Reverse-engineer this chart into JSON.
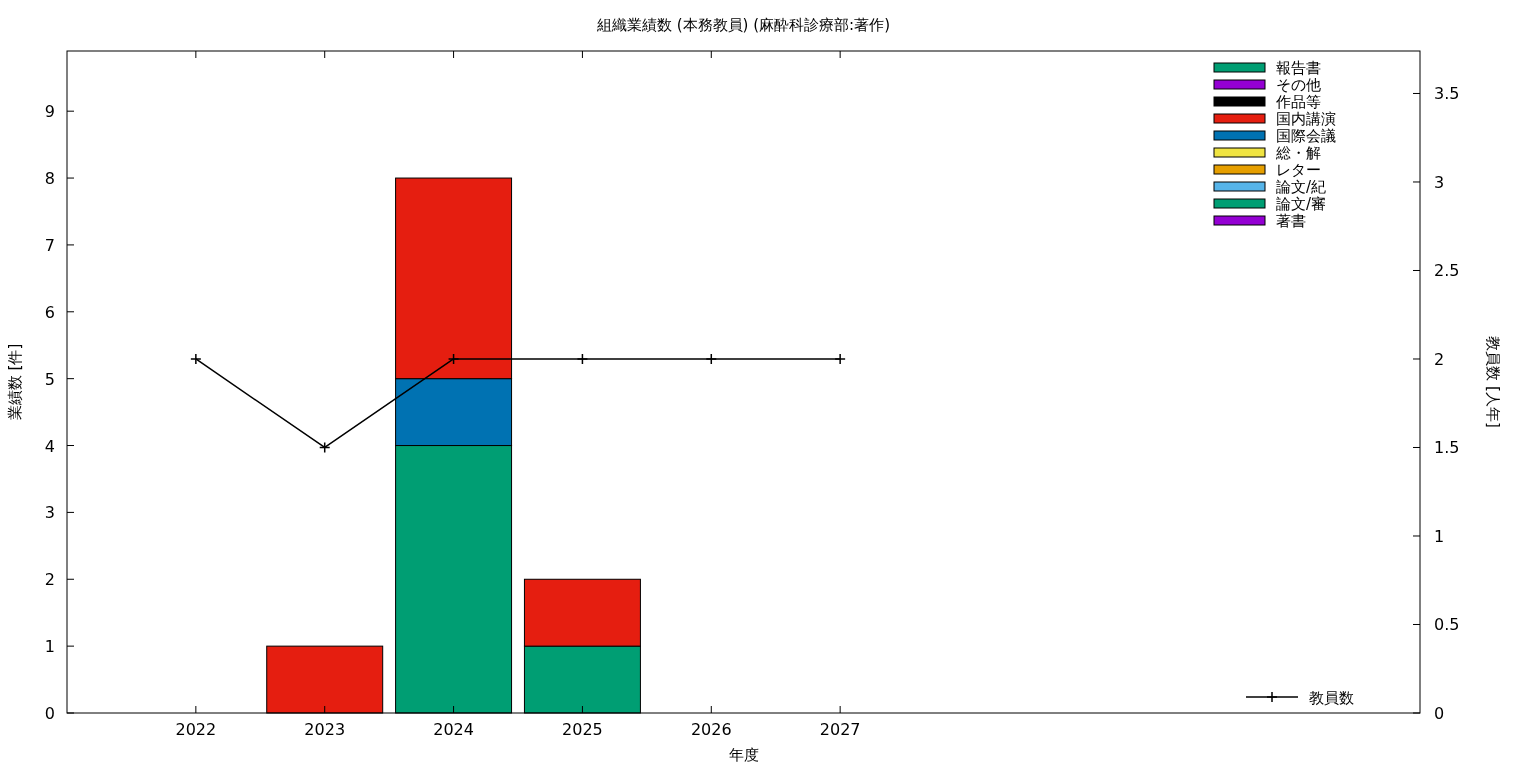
{
  "chart_data": {
    "type": "bar",
    "title": "組織業績数 (本務教員) (麻酔科診療部:著作)",
    "xlabel": "年度",
    "ylabel": "業績数 [件]",
    "y2label": "教員数 [人年]",
    "x": [
      2022,
      2023,
      2024,
      2025,
      2026,
      2027
    ],
    "xlim": [
      2021,
      2031.5
    ],
    "xticks": [
      2022,
      2023,
      2024,
      2025,
      2026,
      2027
    ],
    "ylim": [
      0,
      9.9
    ],
    "yticks": [
      0,
      1,
      2,
      3,
      4,
      5,
      6,
      7,
      8,
      9
    ],
    "y2lim": [
      0,
      3.74
    ],
    "y2ticks": [
      0,
      0.5,
      1,
      1.5,
      2,
      2.5,
      3,
      3.5
    ],
    "stacked": true,
    "legend": "right",
    "grid": false,
    "series": [
      {
        "name": "著書",
        "color": "#9400d3",
        "values": [
          0,
          0,
          0,
          0,
          0,
          0
        ]
      },
      {
        "name": "論文/審",
        "color": "#009e73",
        "values": [
          0,
          0,
          4,
          1,
          0,
          0
        ]
      },
      {
        "name": "論文/紀",
        "color": "#56b4e9",
        "values": [
          0,
          0,
          0,
          0,
          0,
          0
        ]
      },
      {
        "name": "レター",
        "color": "#e69f00",
        "values": [
          0,
          0,
          0,
          0,
          0,
          0
        ]
      },
      {
        "name": "総・解",
        "color": "#f0e442",
        "values": [
          0,
          0,
          0,
          0,
          0,
          0
        ]
      },
      {
        "name": "国際会議",
        "color": "#0072b2",
        "values": [
          0,
          0,
          1,
          0,
          0,
          0
        ]
      },
      {
        "name": "国内講演",
        "color": "#e51e10",
        "values": [
          0,
          1,
          3,
          1,
          0,
          0
        ]
      },
      {
        "name": "作品等",
        "color": "#000000",
        "values": [
          0,
          0,
          0,
          0,
          0,
          0
        ]
      },
      {
        "name": "その他",
        "color": "#9400d3",
        "values": [
          0,
          0,
          0,
          0,
          0,
          0
        ]
      },
      {
        "name": "報告書",
        "color": "#009e73",
        "values": [
          0,
          0,
          0,
          0,
          0,
          0
        ]
      },
      {
        "name": "教員数",
        "type": "line",
        "axis": "y2",
        "color": "#000000",
        "marker": "cross",
        "values": [
          2,
          1.5,
          2,
          2,
          2,
          2
        ]
      }
    ]
  }
}
